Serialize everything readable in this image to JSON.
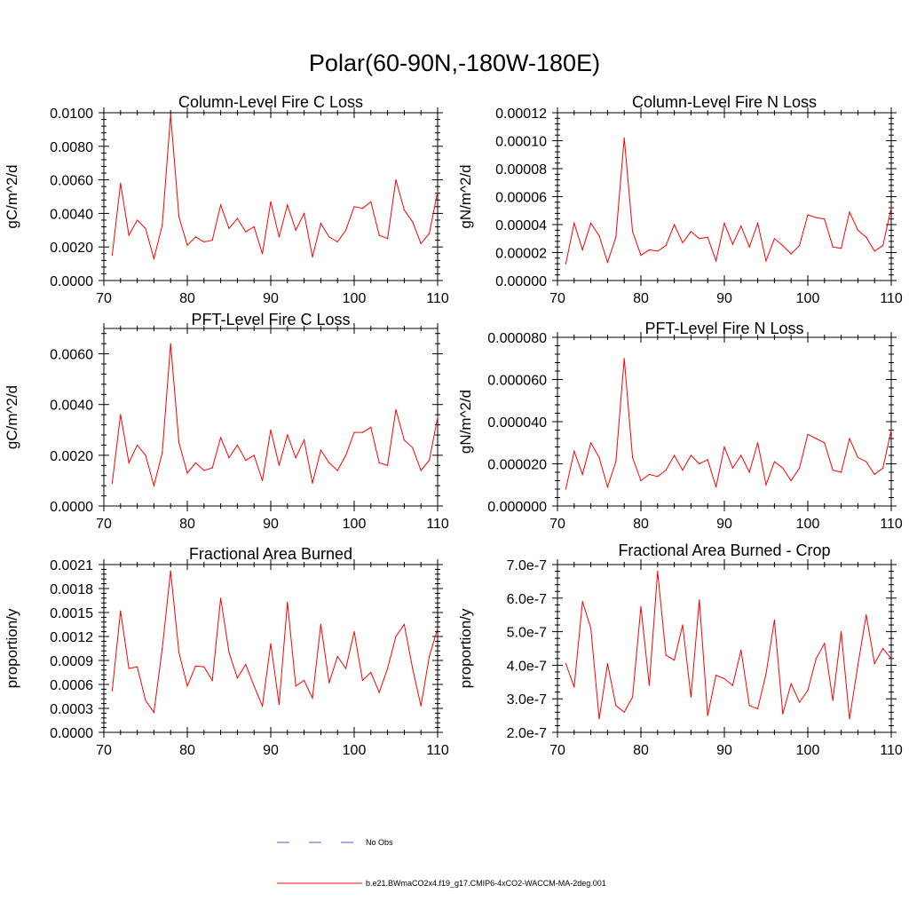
{
  "figure_title": "Polar(60-90N,-180W-180E)",
  "colors": {
    "model_line": "#ff0000",
    "obs_line": "#5a5ac8",
    "axis": "#000000"
  },
  "legend": {
    "obs_label": "No Obs",
    "model_label": "b.e21.BWmaCO2x4.f19_g17.CMIP6-4xCO2-WACCM-MA-2deg.001"
  },
  "chart_data": [
    {
      "type": "line",
      "title": "Column-Level Fire C Loss",
      "xlabel": "",
      "ylabel": "gC/m^2/d",
      "xlim": [
        70,
        110
      ],
      "ylim": [
        0,
        0.01
      ],
      "xticks": [
        70,
        80,
        90,
        100,
        110
      ],
      "xtick_labels": [
        "70",
        "80",
        "90",
        "100",
        "110"
      ],
      "yticks": [
        0,
        0.002,
        0.004,
        0.006,
        0.008,
        0.01
      ],
      "ytick_labels": [
        "0.0000",
        "0.0020",
        "0.0040",
        "0.0060",
        "0.0080",
        "0.0100"
      ],
      "x": [
        71,
        72,
        73,
        74,
        75,
        76,
        77,
        78,
        79,
        80,
        81,
        82,
        83,
        84,
        85,
        86,
        87,
        88,
        89,
        90,
        91,
        92,
        93,
        94,
        95,
        96,
        97,
        98,
        99,
        100,
        101,
        102,
        103,
        104,
        105,
        106,
        107,
        108,
        109,
        110
      ],
      "series": [
        {
          "name": "b.e21.BWmaCO2x4.f19_g17.CMIP6-4xCO2-WACCM-MA-2deg.001",
          "values": [
            0.0015,
            0.0058,
            0.0027,
            0.0036,
            0.0031,
            0.0013,
            0.0033,
            0.0099,
            0.0038,
            0.0021,
            0.0026,
            0.0023,
            0.0024,
            0.0045,
            0.0031,
            0.0037,
            0.0029,
            0.0032,
            0.0016,
            0.0047,
            0.0026,
            0.0045,
            0.003,
            0.004,
            0.0014,
            0.0034,
            0.0026,
            0.0023,
            0.003,
            0.0044,
            0.0043,
            0.0047,
            0.0027,
            0.0025,
            0.006,
            0.0042,
            0.0035,
            0.0022,
            0.0028,
            0.0053
          ]
        }
      ]
    },
    {
      "type": "line",
      "title": "Column-Level Fire N Loss",
      "xlabel": "",
      "ylabel": "gN/m^2/d",
      "xlim": [
        70,
        110
      ],
      "ylim": [
        0,
        0.00012
      ],
      "xticks": [
        70,
        80,
        90,
        100,
        110
      ],
      "xtick_labels": [
        "70",
        "80",
        "90",
        "100",
        "110"
      ],
      "yticks": [
        0,
        2e-05,
        4e-05,
        6e-05,
        8e-05,
        0.0001,
        0.00012
      ],
      "ytick_labels": [
        "0.00000",
        "0.00002",
        "0.00004",
        "0.00006",
        "0.00008",
        "0.00010",
        "0.00012"
      ],
      "x": [
        71,
        72,
        73,
        74,
        75,
        76,
        77,
        78,
        79,
        80,
        81,
        82,
        83,
        84,
        85,
        86,
        87,
        88,
        89,
        90,
        91,
        92,
        93,
        94,
        95,
        96,
        97,
        98,
        99,
        100,
        101,
        102,
        103,
        104,
        105,
        106,
        107,
        108,
        109,
        110
      ],
      "series": [
        {
          "name": "b.e21.BWmaCO2x4.f19_g17.CMIP6-4xCO2-WACCM-MA-2deg.001",
          "values": [
            1.2e-05,
            4.1e-05,
            2.2e-05,
            4.1e-05,
            3.2e-05,
            1.3e-05,
            3.1e-05,
            0.000102,
            3.5e-05,
            1.8e-05,
            2.2e-05,
            2.1e-05,
            2.5e-05,
            4e-05,
            2.7e-05,
            3.5e-05,
            3e-05,
            3.1e-05,
            1.4e-05,
            4.1e-05,
            2.6e-05,
            3.9e-05,
            2.4e-05,
            4.1e-05,
            1.4e-05,
            3e-05,
            2.5e-05,
            1.9e-05,
            2.5e-05,
            4.7e-05,
            4.5e-05,
            4.4e-05,
            2.4e-05,
            2.3e-05,
            4.9e-05,
            3.6e-05,
            3.1e-05,
            2.1e-05,
            2.5e-05,
            5.2e-05
          ]
        }
      ]
    },
    {
      "type": "line",
      "title": "PFT-Level Fire C Loss",
      "xlabel": "",
      "ylabel": "gC/m^2/d",
      "xlim": [
        70,
        110
      ],
      "ylim": [
        0,
        0.007
      ],
      "xticks": [
        70,
        80,
        90,
        100,
        110
      ],
      "xtick_labels": [
        "70",
        "80",
        "90",
        "100",
        "110"
      ],
      "yticks": [
        0,
        0.002,
        0.004,
        0.006
      ],
      "ytick_labels": [
        "0.0000",
        "0.0020",
        "0.0040",
        "0.0060"
      ],
      "x": [
        71,
        72,
        73,
        74,
        75,
        76,
        77,
        78,
        79,
        80,
        81,
        82,
        83,
        84,
        85,
        86,
        87,
        88,
        89,
        90,
        91,
        92,
        93,
        94,
        95,
        96,
        97,
        98,
        99,
        100,
        101,
        102,
        103,
        104,
        105,
        106,
        107,
        108,
        109,
        110
      ],
      "series": [
        {
          "name": "b.e21.BWmaCO2x4.f19_g17.CMIP6-4xCO2-WACCM-MA-2deg.001",
          "values": [
            0.0009,
            0.0036,
            0.0017,
            0.0024,
            0.002,
            0.0008,
            0.0021,
            0.0064,
            0.0025,
            0.0013,
            0.0017,
            0.0014,
            0.0015,
            0.0027,
            0.0019,
            0.0024,
            0.0018,
            0.002,
            0.001,
            0.003,
            0.0016,
            0.0028,
            0.0019,
            0.0026,
            0.0009,
            0.0022,
            0.0017,
            0.0014,
            0.002,
            0.0029,
            0.0029,
            0.0031,
            0.0017,
            0.0016,
            0.0038,
            0.0026,
            0.0023,
            0.0014,
            0.0018,
            0.0035
          ]
        }
      ]
    },
    {
      "type": "line",
      "title": "PFT-Level Fire N Loss",
      "xlabel": "",
      "ylabel": "gN/m^2/d",
      "xlim": [
        70,
        110
      ],
      "ylim": [
        0,
        8e-05
      ],
      "xticks": [
        70,
        80,
        90,
        100,
        110
      ],
      "xtick_labels": [
        "70",
        "80",
        "90",
        "100",
        "110"
      ],
      "yticks": [
        0,
        2e-05,
        4e-05,
        6e-05,
        8e-05
      ],
      "ytick_labels": [
        "0.000000",
        "0.000020",
        "0.000040",
        "0.000060",
        "0.000080"
      ],
      "x": [
        71,
        72,
        73,
        74,
        75,
        76,
        77,
        78,
        79,
        80,
        81,
        82,
        83,
        84,
        85,
        86,
        87,
        88,
        89,
        90,
        91,
        92,
        93,
        94,
        95,
        96,
        97,
        98,
        99,
        100,
        101,
        102,
        103,
        104,
        105,
        106,
        107,
        108,
        109,
        110
      ],
      "series": [
        {
          "name": "b.e21.BWmaCO2x4.f19_g17.CMIP6-4xCO2-WACCM-MA-2deg.001",
          "values": [
            8e-06,
            2.6e-05,
            1.5e-05,
            3e-05,
            2.3e-05,
            9e-06,
            2.1e-05,
            7e-05,
            2.3e-05,
            1.2e-05,
            1.5e-05,
            1.4e-05,
            1.7e-05,
            2.4e-05,
            1.7e-05,
            2.4e-05,
            2e-05,
            2.2e-05,
            9e-06,
            2.8e-05,
            1.8e-05,
            2.4e-05,
            1.6e-05,
            3e-05,
            1e-05,
            2.1e-05,
            1.8e-05,
            1.2e-05,
            1.8e-05,
            3.4e-05,
            3.2e-05,
            3e-05,
            1.7e-05,
            1.6e-05,
            3.2e-05,
            2.3e-05,
            2.1e-05,
            1.5e-05,
            1.8e-05,
            3.6e-05
          ]
        }
      ]
    },
    {
      "type": "line",
      "title": "Fractional Area Burned",
      "xlabel": "",
      "ylabel": "proportion/y",
      "xlim": [
        70,
        110
      ],
      "ylim": [
        0,
        0.0021
      ],
      "xticks": [
        70,
        80,
        90,
        100,
        110
      ],
      "xtick_labels": [
        "70",
        "80",
        "90",
        "100",
        "110"
      ],
      "yticks": [
        0,
        0.0003,
        0.0006,
        0.0009,
        0.0012,
        0.0015,
        0.0018,
        0.0021
      ],
      "ytick_labels": [
        "0.0000",
        "0.0003",
        "0.0006",
        "0.0009",
        "0.0012",
        "0.0015",
        "0.0018",
        "0.0021"
      ],
      "x": [
        71,
        72,
        73,
        74,
        75,
        76,
        77,
        78,
        79,
        80,
        81,
        82,
        83,
        84,
        85,
        86,
        87,
        88,
        89,
        90,
        91,
        92,
        93,
        94,
        95,
        96,
        97,
        98,
        99,
        100,
        101,
        102,
        103,
        104,
        105,
        106,
        107,
        108,
        109,
        110
      ],
      "series": [
        {
          "name": "b.e21.BWmaCO2x4.f19_g17.CMIP6-4xCO2-WACCM-MA-2deg.001",
          "values": [
            0.00052,
            0.00152,
            0.0008,
            0.00082,
            0.0004,
            0.00025,
            0.00105,
            0.00202,
            0.001,
            0.00058,
            0.00083,
            0.00082,
            0.00065,
            0.00168,
            0.001,
            0.00068,
            0.00085,
            0.00058,
            0.00033,
            0.00111,
            0.00035,
            0.00163,
            0.00058,
            0.00065,
            0.00043,
            0.00135,
            0.00062,
            0.00095,
            0.0008,
            0.00126,
            0.00065,
            0.00075,
            0.0005,
            0.0008,
            0.0012,
            0.00135,
            0.0008,
            0.00033,
            0.00095,
            0.0013
          ]
        }
      ]
    },
    {
      "type": "line",
      "title": "Fractional Area Burned - Crop",
      "xlabel": "",
      "ylabel": "proportion/y",
      "xlim": [
        70,
        110
      ],
      "ylim": [
        2e-07,
        7e-07
      ],
      "xticks": [
        70,
        80,
        90,
        100,
        110
      ],
      "xtick_labels": [
        "70",
        "80",
        "90",
        "100",
        "110"
      ],
      "yticks": [
        2e-07,
        3e-07,
        4e-07,
        5e-07,
        6e-07,
        7e-07
      ],
      "ytick_labels": [
        "2.0e-7",
        "3.0e-7",
        "4.0e-7",
        "5.0e-7",
        "6.0e-7",
        "7.0e-7"
      ],
      "x": [
        71,
        72,
        73,
        74,
        75,
        76,
        77,
        78,
        79,
        80,
        81,
        82,
        83,
        84,
        85,
        86,
        87,
        88,
        89,
        90,
        91,
        92,
        93,
        94,
        95,
        96,
        97,
        98,
        99,
        100,
        101,
        102,
        103,
        104,
        105,
        106,
        107,
        108,
        109,
        110
      ],
      "series": [
        {
          "name": "b.e21.BWmaCO2x4.f19_g17.CMIP6-4xCO2-WACCM-MA-2deg.001",
          "values": [
            4.05e-07,
            3.35e-07,
            5.9e-07,
            5.1e-07,
            2.4e-07,
            4.05e-07,
            2.8e-07,
            2.6e-07,
            3.05e-07,
            5.75e-07,
            3.4e-07,
            6.8e-07,
            4.3e-07,
            4.15e-07,
            5.2e-07,
            3.05e-07,
            5.95e-07,
            2.5e-07,
            3.7e-07,
            3.6e-07,
            3.4e-07,
            4.45e-07,
            2.8e-07,
            2.7e-07,
            3.75e-07,
            5.35e-07,
            2.55e-07,
            3.45e-07,
            2.9e-07,
            3.25e-07,
            4.2e-07,
            4.65e-07,
            2.95e-07,
            5e-07,
            2.4e-07,
            4e-07,
            5.5e-07,
            4.05e-07,
            4.5e-07,
            4.2e-07
          ]
        }
      ]
    }
  ]
}
